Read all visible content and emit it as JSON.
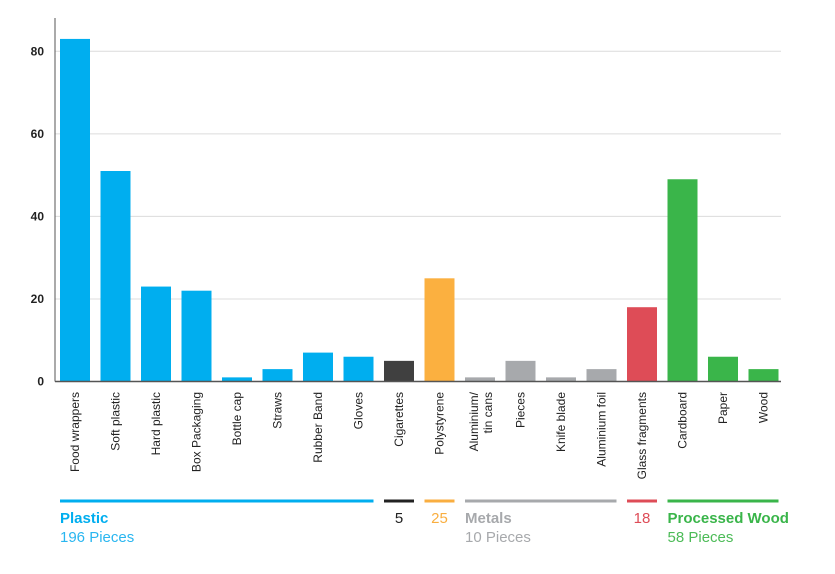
{
  "chart_data": {
    "type": "bar",
    "title": "",
    "xlabel": "",
    "ylabel": "",
    "ylim": [
      0,
      88
    ],
    "yticks": [
      0,
      20,
      40,
      60,
      80
    ],
    "grid": true,
    "categories": [
      "Food wrappers",
      "Soft plastic",
      "Hard plastic",
      "Box Packaging",
      "Bottle cap",
      "Straws",
      "Rubber Band",
      "Gloves",
      "Cigarettes",
      "Polystyrene",
      "Aluminium/ tin cans",
      "Pieces",
      "Knife blade",
      "Aluminium foil",
      "Glass fragments",
      "Cardboard",
      "Paper",
      "Wood"
    ],
    "values": [
      83,
      51,
      23,
      22,
      1,
      3,
      7,
      6,
      5,
      25,
      1,
      5,
      1,
      3,
      18,
      49,
      6,
      3
    ],
    "bar_groups": [
      "plastic",
      "plastic",
      "plastic",
      "plastic",
      "plastic",
      "plastic",
      "plastic",
      "plastic",
      "cigarettes",
      "polystyrene",
      "metals",
      "metals",
      "metals",
      "metals",
      "glass",
      "wood",
      "wood",
      "wood"
    ],
    "groups": [
      {
        "id": "plastic",
        "title": "Plastic",
        "subtitle": "196 Pieces",
        "color": "#00AEEF",
        "sub_color": "#29B6F0",
        "start": 0,
        "end": 7
      },
      {
        "id": "cigarettes",
        "title": "5",
        "subtitle": "",
        "color": "#222222",
        "title_weight": "normal",
        "start": 8,
        "end": 8
      },
      {
        "id": "polystyrene",
        "title": "25",
        "subtitle": "",
        "color": "#F9AE40",
        "title_weight": "normal",
        "start": 9,
        "end": 9
      },
      {
        "id": "metals",
        "title": "Metals",
        "subtitle": "10 Pieces",
        "color": "#A7A9AC",
        "sub_color": "#A7A9AC",
        "start": 10,
        "end": 13
      },
      {
        "id": "glass",
        "title": "18",
        "subtitle": "",
        "color": "#DE4C57",
        "title_weight": "normal",
        "start": 14,
        "end": 14
      },
      {
        "id": "wood",
        "title": "Processed Wood",
        "subtitle": "58 Pieces",
        "color": "#3AB54A",
        "sub_color": "#4CBB57",
        "start": 15,
        "end": 17
      }
    ],
    "bar_colors": {
      "plastic": "#00AEEF",
      "cigarettes": "#404040",
      "polystyrene": "#FBB040",
      "metals": "#A7A9AC",
      "glass": "#DE4C57",
      "wood": "#3AB54A"
    },
    "legend": "bottom"
  }
}
